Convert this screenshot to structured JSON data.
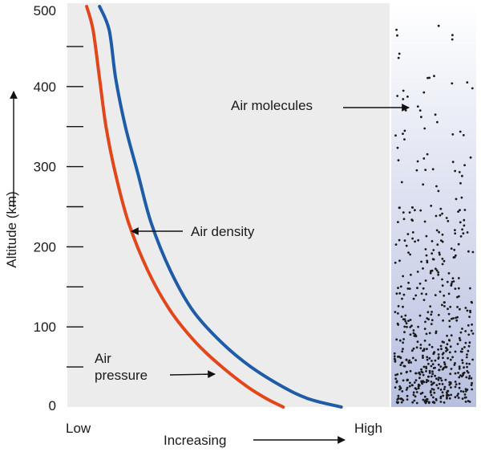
{
  "chart_data": {
    "type": "line",
    "ylabel": "Altitude (km)",
    "yticks": [
      0,
      100,
      200,
      300,
      400,
      500
    ],
    "ylim": [
      0,
      500
    ],
    "x_low_label": "Low",
    "x_high_label": "High",
    "x_mid_label": "Increasing",
    "series": [
      {
        "name": "Air pressure",
        "color": "#e2461b",
        "points": [
          [
            0.67,
            0
          ],
          [
            0.62,
            10
          ],
          [
            0.56,
            25
          ],
          [
            0.48,
            50
          ],
          [
            0.4,
            80
          ],
          [
            0.32,
            120
          ],
          [
            0.25,
            170
          ],
          [
            0.19,
            230
          ],
          [
            0.15,
            290
          ],
          [
            0.12,
            350
          ],
          [
            0.1,
            410
          ],
          [
            0.08,
            470
          ],
          [
            0.06,
            500
          ]
        ]
      },
      {
        "name": "Air density",
        "color": "#1e5ca8",
        "points": [
          [
            0.85,
            0
          ],
          [
            0.75,
            10
          ],
          [
            0.67,
            25
          ],
          [
            0.57,
            50
          ],
          [
            0.48,
            80
          ],
          [
            0.39,
            120
          ],
          [
            0.32,
            170
          ],
          [
            0.26,
            230
          ],
          [
            0.22,
            290
          ],
          [
            0.18,
            350
          ],
          [
            0.15,
            410
          ],
          [
            0.13,
            470
          ],
          [
            0.1,
            500
          ]
        ]
      }
    ],
    "annotations": {
      "density": "Air density",
      "pressure_line1": "Air",
      "pressure_line2": "pressure",
      "molecules": "Air molecules"
    }
  }
}
